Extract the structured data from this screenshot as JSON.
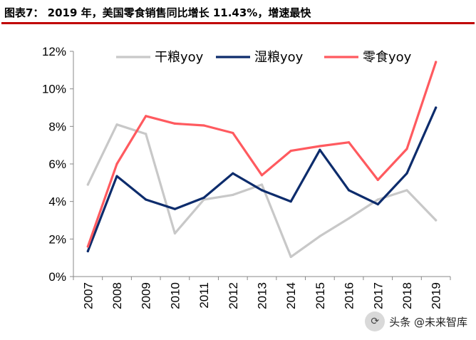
{
  "header": {
    "title": "图表7： 2019 年，美国零食销售同比增长 11.43%，增速最快"
  },
  "chart_data": {
    "type": "line",
    "categories": [
      "2007",
      "2008",
      "2009",
      "2010",
      "2011",
      "2012",
      "2013",
      "2014",
      "2015",
      "2016",
      "2017",
      "2018",
      "2019"
    ],
    "ylim": [
      0,
      12
    ],
    "yticks": [
      0,
      2,
      4,
      6,
      8,
      10,
      12
    ],
    "ytick_labels": [
      "0%",
      "2%",
      "4%",
      "6%",
      "8%",
      "10%",
      "12%"
    ],
    "legend_position": "top",
    "grid": false,
    "series": [
      {
        "name": "干粮yoy",
        "color": "#c8c8c8",
        "values": [
          4.9,
          8.1,
          7.6,
          2.3,
          4.1,
          4.35,
          4.9,
          1.05,
          2.15,
          3.1,
          4.1,
          4.6,
          3.0
        ]
      },
      {
        "name": "湿粮yoy",
        "color": "#0d2c6c",
        "values": [
          1.35,
          5.35,
          4.1,
          3.6,
          4.2,
          5.5,
          4.6,
          4.0,
          6.75,
          4.6,
          3.85,
          5.5,
          9.0
        ]
      },
      {
        "name": "零食yoy",
        "color": "#ff5a5f",
        "values": [
          1.6,
          6.0,
          8.55,
          8.15,
          8.05,
          7.65,
          5.4,
          6.7,
          6.95,
          7.15,
          5.15,
          6.8,
          11.43
        ]
      }
    ]
  },
  "watermark": {
    "badge": "⟳",
    "text": "头条 @未来智库"
  }
}
